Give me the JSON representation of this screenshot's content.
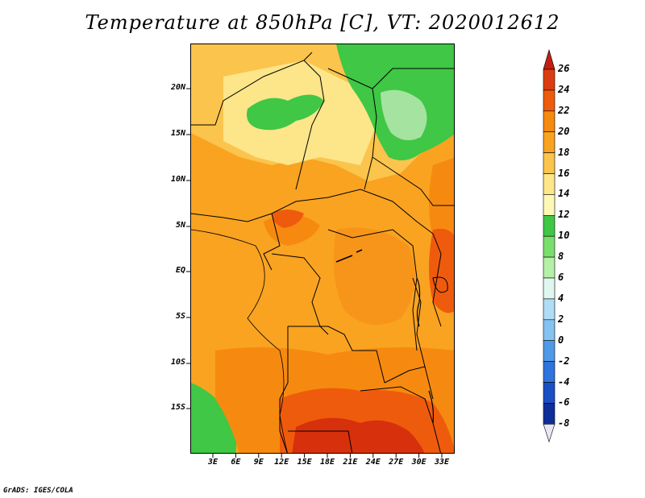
{
  "title": "Temperature at 850hPa [C], VT: 2020012612",
  "credit": "GrADS: IGES/COLA",
  "lat_labels": [
    "20N",
    "15N",
    "10N",
    "5N",
    "EQ",
    "5S",
    "10S",
    "15S"
  ],
  "lon_labels": [
    "3E",
    "6E",
    "9E",
    "12E",
    "15E",
    "18E",
    "21E",
    "24E",
    "27E",
    "30E",
    "33E"
  ],
  "colorbar": {
    "labels": [
      "26",
      "24",
      "22",
      "20",
      "18",
      "16",
      "14",
      "12",
      "10",
      "8",
      "6",
      "4",
      "2",
      "0",
      "-2",
      "-4",
      "-6",
      "-8"
    ],
    "colors": [
      "#dc3d10",
      "#ef5b0d",
      "#f68a10",
      "#f9a321",
      "#fbc44c",
      "#fde58a",
      "#fdf8b6",
      "#3fc745",
      "#7ade6c",
      "#b4f0a8",
      "#e0f7f0",
      "#b0dcf5",
      "#84c2f0",
      "#4f9ae6",
      "#2e74dc",
      "#1b4fc6",
      "#0e2e9a",
      "#06137a"
    ],
    "top_arrow_color": "#c41e10",
    "bottom_arrow_color": "#e6e6f7"
  },
  "map_colors": {
    "c12": "#3fc745",
    "c14": "#a5e3a0",
    "c16": "#fde58a",
    "c18": "#fbc44c",
    "c20": "#f9a321",
    "c22": "#f68a10",
    "c24": "#ef5b0d",
    "c26": "#d7300c"
  }
}
